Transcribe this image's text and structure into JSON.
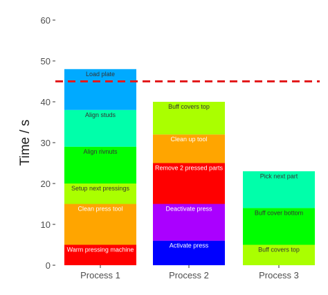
{
  "chart_data": {
    "type": "bar",
    "stacked": true,
    "ylabel": "Time / s",
    "xlabel": "",
    "ylim": [
      0,
      60
    ],
    "yticks": [
      0,
      10,
      20,
      30,
      40,
      50,
      60
    ],
    "categories": [
      "Process 1",
      "Process 2",
      "Process 3"
    ],
    "grid": false,
    "reference_line": {
      "y": 45,
      "style": "dashed",
      "color": "#e31a1c"
    },
    "stacks": [
      {
        "category": "Process 1",
        "segments": [
          {
            "label": "Warm pressing machine",
            "value": 5,
            "color": "#ff0000",
            "text_color": "#ffffff"
          },
          {
            "label": "Clean press tool",
            "value": 10,
            "color": "#ffa500",
            "text_color": "#ffffff"
          },
          {
            "label": "Setup next pressings",
            "value": 5,
            "color": "#aaff00",
            "text_color": "#333333"
          },
          {
            "label": "Align rivnuts",
            "value": 9,
            "color": "#00ff00",
            "text_color": "#333333"
          },
          {
            "label": "Align studs",
            "value": 9,
            "color": "#00ffaa",
            "text_color": "#333333"
          },
          {
            "label": "Load plate",
            "value": 10,
            "color": "#00aaff",
            "text_color": "#333333"
          }
        ]
      },
      {
        "category": "Process 2",
        "segments": [
          {
            "label": "Activate press",
            "value": 6,
            "color": "#0000ff",
            "text_color": "#ffffff"
          },
          {
            "label": "Deactivate press",
            "value": 9,
            "color": "#aa00ff",
            "text_color": "#ffffff"
          },
          {
            "label": "Remove 2 pressed parts",
            "value": 10,
            "color": "#ff0000",
            "text_color": "#ffffff"
          },
          {
            "label": "Clean up tool",
            "value": 7,
            "color": "#ffa500",
            "text_color": "#ffffff"
          },
          {
            "label": "Buff covers top",
            "value": 8,
            "color": "#aaff00",
            "text_color": "#333333"
          }
        ]
      },
      {
        "category": "Process 3",
        "segments": [
          {
            "label": "Buff covers top",
            "value": 5,
            "color": "#aaff00",
            "text_color": "#333333"
          },
          {
            "label": "Buff cover bottom",
            "value": 9,
            "color": "#00ff00",
            "text_color": "#333333"
          },
          {
            "label": "Pick next part",
            "value": 9,
            "color": "#00ffaa",
            "text_color": "#333333"
          }
        ]
      }
    ]
  }
}
